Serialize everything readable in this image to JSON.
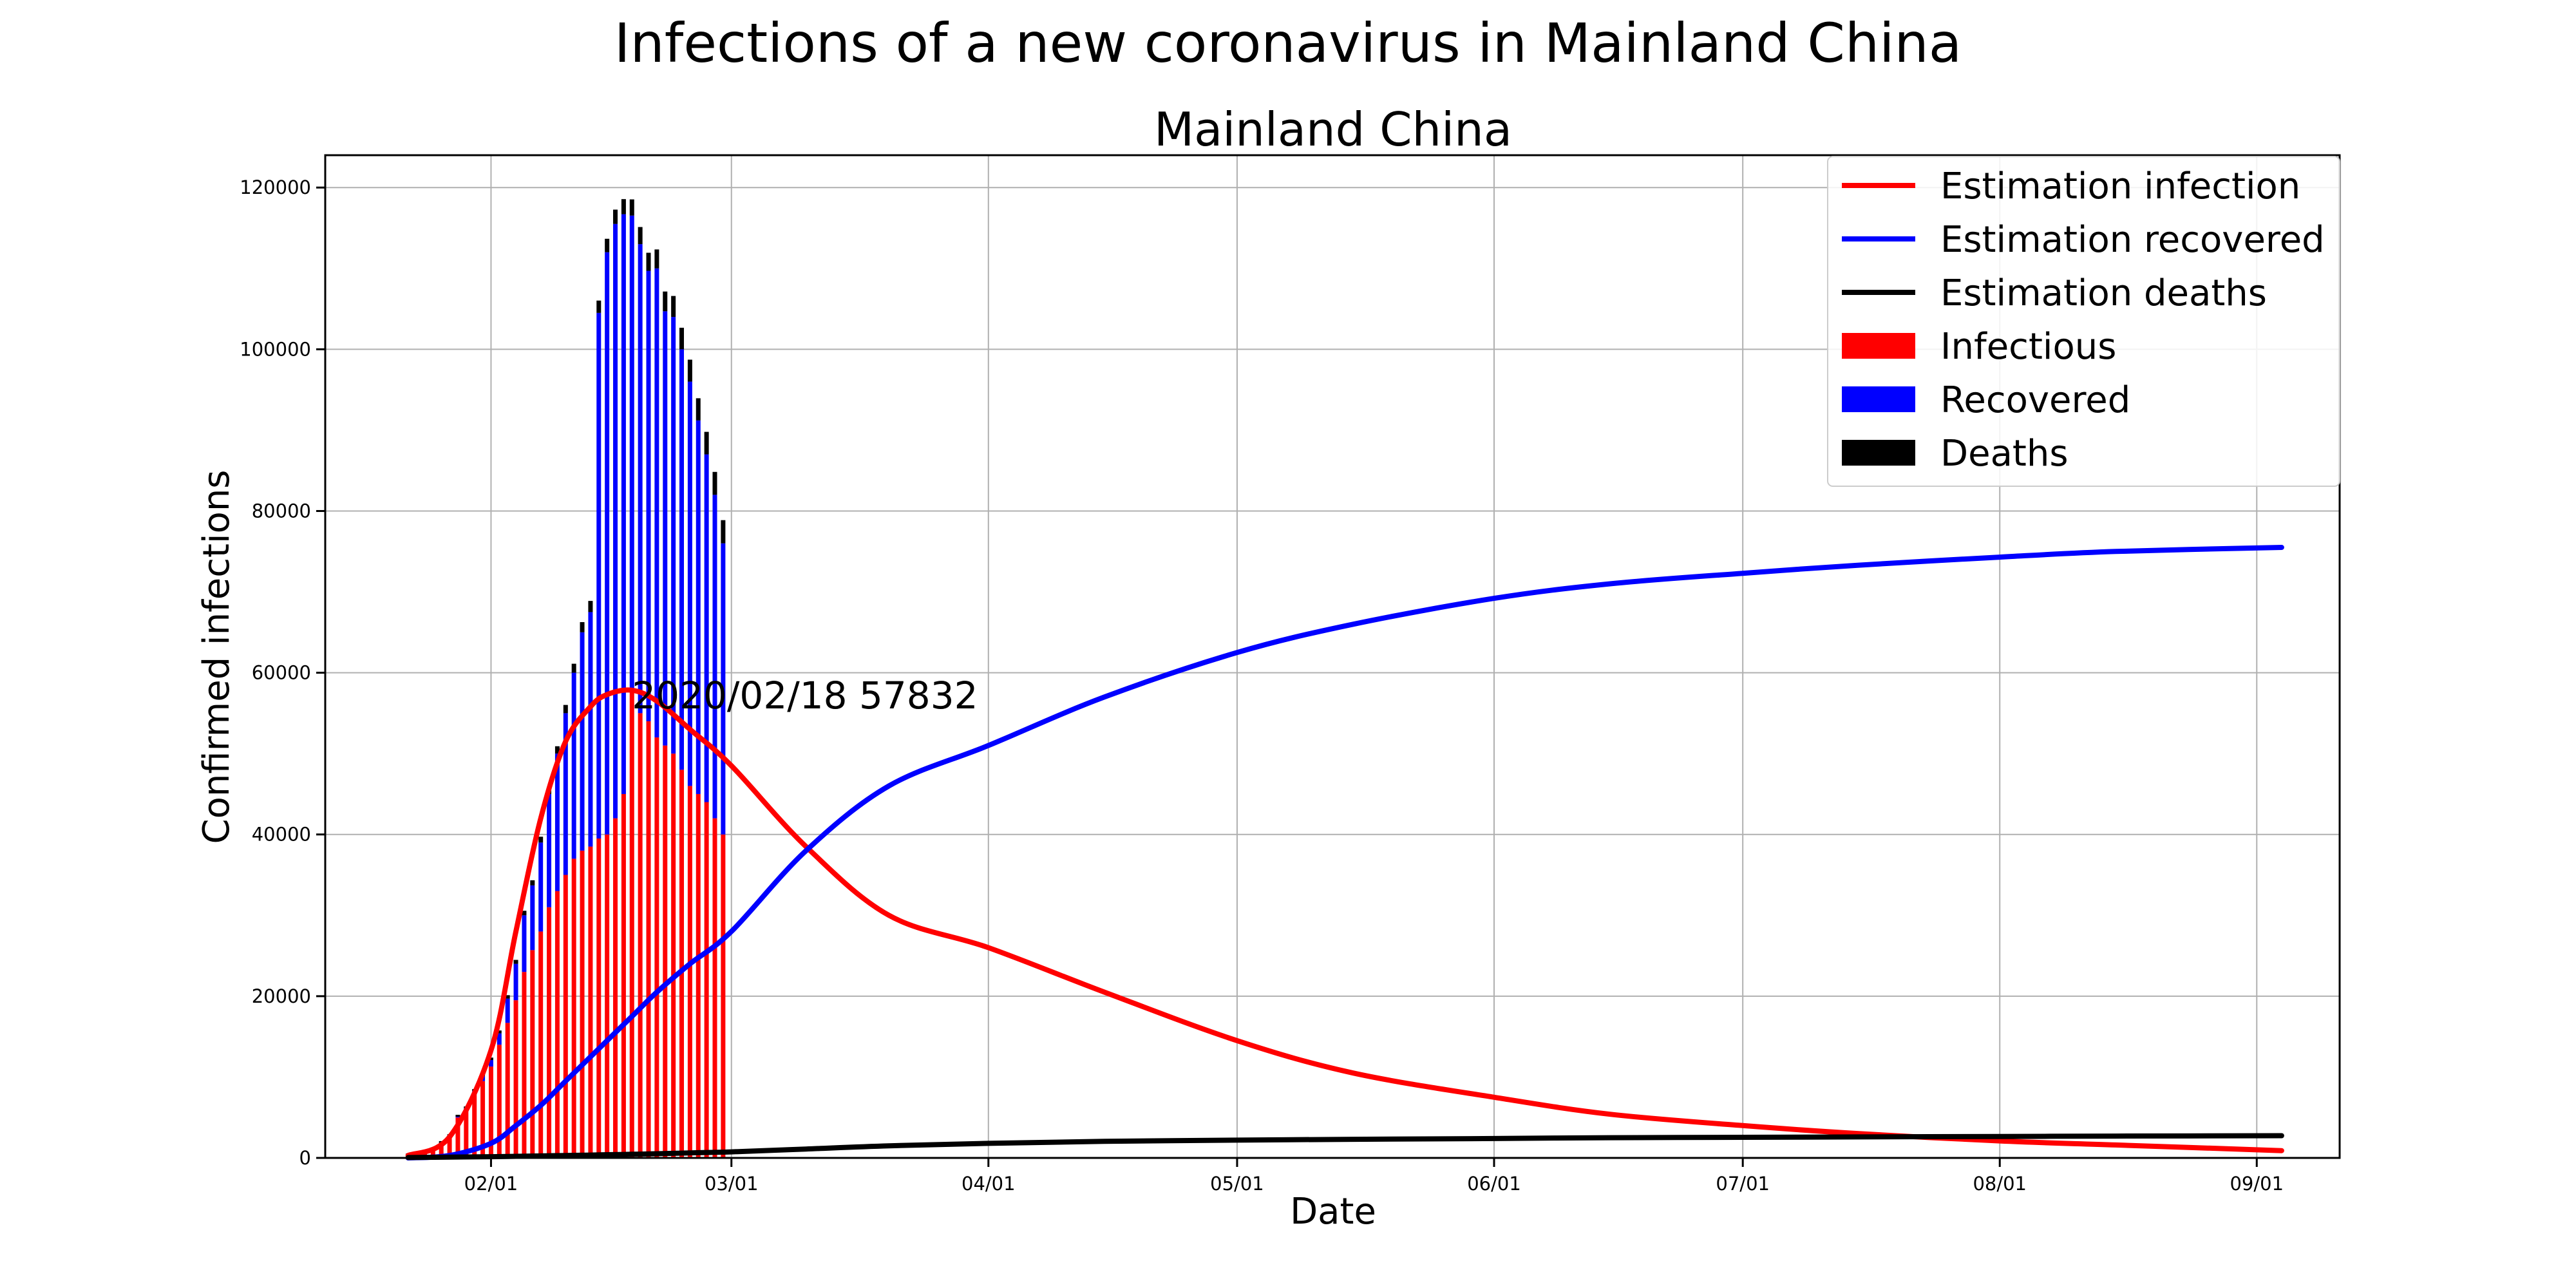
{
  "figure": {
    "suptitle": "Infections of a new coronavirus in Mainland China"
  },
  "chart_data": {
    "type": "bar",
    "title": "Mainland China",
    "xlabel": "Date",
    "ylabel": "Confirmed infections",
    "x_axis": {
      "type": "date",
      "range": [
        "2020-01-12",
        "2020-09-11"
      ],
      "tick_dates": [
        "2020-02-01",
        "2020-03-01",
        "2020-04-01",
        "2020-05-01",
        "2020-06-01",
        "2020-07-01",
        "2020-08-01",
        "2020-09-01"
      ],
      "tick_labels": [
        "02/01",
        "03/01",
        "04/01",
        "05/01",
        "06/01",
        "07/01",
        "08/01",
        "09/01"
      ]
    },
    "ylim": [
      0,
      124000
    ],
    "yticks": [
      0,
      20000,
      40000,
      60000,
      80000,
      100000,
      120000
    ],
    "ytick_labels": [
      "0",
      "20000",
      "40000",
      "60000",
      "80000",
      "100000",
      "120000"
    ],
    "grid": true,
    "legend_position": "top-right",
    "legend": [
      {
        "label": "Estimation infection",
        "kind": "line",
        "color": "#ff0000"
      },
      {
        "label": "Estimation recovered",
        "kind": "line",
        "color": "#0000ff"
      },
      {
        "label": "Estimation deaths",
        "kind": "line",
        "color": "#000000"
      },
      {
        "label": "Infectious",
        "kind": "patch",
        "color": "#ff0000"
      },
      {
        "label": "Recovered",
        "kind": "patch",
        "color": "#0000ff"
      },
      {
        "label": "Deaths",
        "kind": "patch",
        "color": "#000000"
      }
    ],
    "annotation": {
      "text": "2020/02/18 57832",
      "x": "2020-02-18",
      "y": 57832
    },
    "bars": {
      "stacked": true,
      "series": [
        {
          "name": "Infectious",
          "color": "#ff0000"
        },
        {
          "name": "Recovered",
          "color": "#0000ff"
        },
        {
          "name": "Deaths",
          "color": "#000000"
        }
      ],
      "dates": [
        "2020-01-22",
        "2020-01-23",
        "2020-01-24",
        "2020-01-25",
        "2020-01-26",
        "2020-01-27",
        "2020-01-28",
        "2020-01-29",
        "2020-01-30",
        "2020-01-31",
        "2020-02-01",
        "2020-02-02",
        "2020-02-03",
        "2020-02-04",
        "2020-02-05",
        "2020-02-06",
        "2020-02-07",
        "2020-02-08",
        "2020-02-09",
        "2020-02-10",
        "2020-02-11",
        "2020-02-12",
        "2020-02-13",
        "2020-02-14",
        "2020-02-15",
        "2020-02-16",
        "2020-02-17",
        "2020-02-18",
        "2020-02-19",
        "2020-02-20",
        "2020-02-21",
        "2020-02-22",
        "2020-02-23",
        "2020-02-24",
        "2020-02-25",
        "2020-02-26",
        "2020-02-27",
        "2020-02-28",
        "2020-02-29"
      ],
      "infectious": [
        500,
        550,
        800,
        1200,
        1900,
        2700,
        5000,
        5900,
        7800,
        9500,
        11300,
        14000,
        16700,
        19500,
        23000,
        25700,
        28000,
        31000,
        33000,
        35000,
        37000,
        38000,
        38500,
        39500,
        40000,
        42000,
        45000,
        57832,
        55000,
        54000,
        52000,
        51000,
        50000,
        48000,
        46000,
        45000,
        44000,
        42000,
        40000
      ],
      "recovered": [
        30,
        40,
        50,
        60,
        100,
        120,
        200,
        300,
        500,
        600,
        800,
        1400,
        3000,
        4500,
        7000,
        8000,
        11000,
        14000,
        17000,
        20000,
        23000,
        27000,
        29000,
        65000,
        72000,
        73500,
        71700,
        58700,
        58000,
        55700,
        58000,
        53700,
        54000,
        52000,
        50000,
        46200,
        43000,
        40000,
        36000
      ],
      "deaths": [
        17,
        25,
        41,
        56,
        80,
        106,
        132,
        170,
        213,
        259,
        304,
        361,
        425,
        490,
        563,
        636,
        722,
        811,
        908,
        1016,
        1113,
        1259,
        1380,
        1523,
        1665,
        1770,
        1868,
        2004,
        2118,
        2236,
        2345,
        2442,
        2592,
        2663,
        2715,
        2744,
        2788,
        2835,
        2870
      ]
    },
    "estimation": {
      "dates": [
        "2020-01-22",
        "2020-01-27",
        "2020-02-01",
        "2020-02-04",
        "2020-02-07",
        "2020-02-10",
        "2020-02-13",
        "2020-02-15",
        "2020-02-18",
        "2020-02-21",
        "2020-02-25",
        "2020-03-01",
        "2020-03-10",
        "2020-03-20",
        "2020-04-01",
        "2020-04-15",
        "2020-05-01",
        "2020-05-15",
        "2020-06-01",
        "2020-06-15",
        "2020-07-01",
        "2020-07-15",
        "2020-08-01",
        "2020-08-15",
        "2020-09-04"
      ],
      "infection": [
        300,
        2600,
        13300,
        28000,
        42000,
        51500,
        55800,
        57300,
        57832,
        56500,
        53000,
        48500,
        38500,
        30000,
        26000,
        20500,
        14500,
        10500,
        7500,
        5400,
        4000,
        3000,
        2100,
        1600,
        900
      ],
      "recovered": [
        0,
        300,
        1800,
        4000,
        6500,
        9500,
        12500,
        14500,
        17500,
        20500,
        24000,
        28000,
        38000,
        46000,
        51000,
        57000,
        62500,
        66000,
        69200,
        71000,
        72300,
        73300,
        74300,
        75000,
        75500
      ],
      "deaths": [
        50,
        100,
        150,
        200,
        250,
        300,
        350,
        400,
        450,
        520,
        620,
        750,
        1100,
        1500,
        1800,
        2050,
        2200,
        2300,
        2400,
        2500,
        2550,
        2600,
        2650,
        2700,
        2750
      ]
    }
  }
}
